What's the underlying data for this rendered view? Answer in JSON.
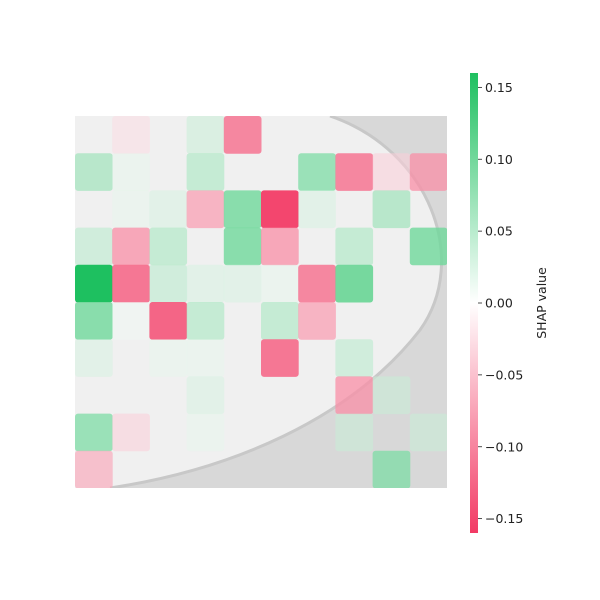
{
  "chart_data": {
    "type": "heatmap",
    "title": "",
    "colorbar": {
      "label": "SHAP value",
      "min": -0.16,
      "max": 0.16,
      "ticks": [
        0.15,
        0.1,
        0.05,
        0.0,
        -0.05,
        -0.1,
        -0.15
      ],
      "tick_labels": [
        "0.15",
        "0.10",
        "0.05",
        "0.00",
        "−0.05",
        "−0.10",
        "−0.15"
      ],
      "color_positive": "#1ec060",
      "color_zero": "#ffffff",
      "color_negative": "#f23a64"
    },
    "grid": {
      "rows": 10,
      "cols": 10,
      "values": [
        [
          0.0,
          -0.03,
          0.0,
          0.04,
          -0.11,
          0.0,
          0.0,
          0.0,
          0.0,
          0.0
        ],
        [
          0.07,
          0.02,
          0.0,
          0.06,
          0.0,
          0.0,
          0.09,
          -0.11,
          -0.04,
          -0.09
        ],
        [
          0.0,
          0.02,
          0.03,
          -0.08,
          0.1,
          -0.15,
          0.03,
          0.0,
          0.07,
          0.0
        ],
        [
          0.05,
          -0.09,
          0.06,
          0.0,
          0.1,
          -0.09,
          0.0,
          0.06,
          0.0,
          0.1
        ],
        [
          0.16,
          -0.12,
          0.05,
          0.03,
          0.03,
          0.02,
          -0.11,
          0.11,
          0.0,
          0.0
        ],
        [
          0.1,
          0.01,
          -0.13,
          0.06,
          0.0,
          0.06,
          -0.08,
          0.0,
          0.0,
          0.0
        ],
        [
          0.03,
          0.0,
          0.02,
          0.02,
          0.0,
          -0.12,
          0.0,
          0.05,
          0.0,
          0.0
        ],
        [
          0.0,
          0.0,
          0.0,
          0.03,
          0.0,
          0.0,
          0.0,
          -0.09,
          0.04,
          0.0
        ],
        [
          0.09,
          -0.04,
          0.0,
          0.02,
          0.0,
          0.0,
          0.0,
          0.04,
          0.0,
          0.04
        ],
        [
          -0.07,
          0.0,
          0.0,
          0.0,
          0.0,
          0.0,
          0.0,
          0.0,
          0.09,
          0.0
        ]
      ]
    }
  }
}
